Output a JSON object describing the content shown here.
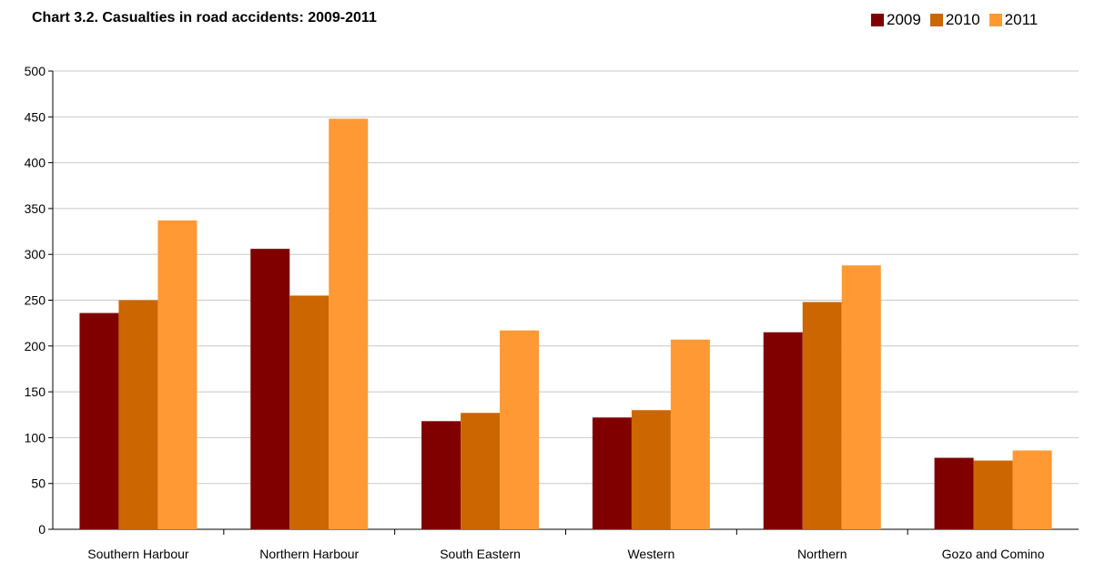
{
  "chart_data": {
    "type": "bar",
    "title": "Chart 3.2. Casualties in road accidents: 2009-2011",
    "xlabel": "",
    "ylabel": "",
    "ylim": [
      0,
      500
    ],
    "yticks": [
      0,
      50,
      100,
      150,
      200,
      250,
      300,
      350,
      400,
      450,
      500
    ],
    "categories": [
      "Southern Harbour",
      "Northern Harbour",
      "South Eastern",
      "Western",
      "Northern",
      "Gozo and Comino"
    ],
    "series": [
      {
        "name": "2009",
        "color": "#800000",
        "values": [
          236,
          306,
          118,
          122,
          215,
          78
        ]
      },
      {
        "name": "2010",
        "color": "#cc6600",
        "values": [
          250,
          255,
          127,
          130,
          248,
          75
        ]
      },
      {
        "name": "2011",
        "color": "#ff9933",
        "values": [
          337,
          448,
          217,
          207,
          288,
          86
        ]
      }
    ],
    "grid": true,
    "legend_position": "top-right"
  }
}
